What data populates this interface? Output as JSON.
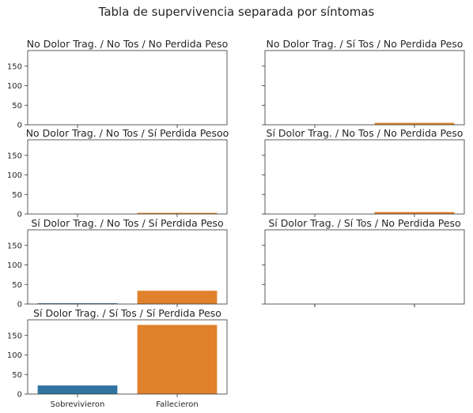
{
  "figure": {
    "title": "Tabla de supervivencia separada por síntomas"
  },
  "colors": {
    "sobrevivieron": "#3274a1",
    "fallecieron": "#e1812c",
    "axis": "#333333",
    "text": "#262626"
  },
  "chart_data": [
    {
      "type": "bar",
      "title": "No Dolor Trag. / No Tos / No Perdida Peso",
      "categories": [
        "Sobrevivieron",
        "Fallecieron"
      ],
      "values": [
        0,
        0
      ],
      "ylim": [
        0,
        190
      ],
      "yticks": [
        0,
        50,
        100,
        150
      ],
      "show_xticklabels": false,
      "show_yticklabels": true
    },
    {
      "type": "bar",
      "title": "No Dolor Trag. / Sí Tos / No Perdida Peso",
      "categories": [
        "Sobrevivieron",
        "Fallecieron"
      ],
      "values": [
        0,
        5
      ],
      "ylim": [
        0,
        190
      ],
      "yticks": [
        0,
        50,
        100,
        150
      ],
      "show_xticklabels": false,
      "show_yticklabels": false
    },
    {
      "type": "bar",
      "title": "No Dolor Trag. / No Tos / Sí Perdida Pesoo",
      "categories": [
        "Sobrevivieron",
        "Fallecieron"
      ],
      "values": [
        0,
        3
      ],
      "ylim": [
        0,
        190
      ],
      "yticks": [
        0,
        50,
        100,
        150
      ],
      "show_xticklabels": false,
      "show_yticklabels": true
    },
    {
      "type": "bar",
      "title": "Sí Dolor Trag. / No Tos / No Perdida Peso",
      "categories": [
        "Sobrevivieron",
        "Fallecieron"
      ],
      "values": [
        0,
        5
      ],
      "ylim": [
        0,
        190
      ],
      "yticks": [
        0,
        50,
        100,
        150
      ],
      "show_xticklabels": false,
      "show_yticklabels": false
    },
    {
      "type": "bar",
      "title": "Sí Dolor Trag. / No Tos / Sí Perdida Peso",
      "categories": [
        "Sobrevivieron",
        "Fallecieron"
      ],
      "values": [
        2,
        34
      ],
      "ylim": [
        0,
        190
      ],
      "yticks": [
        0,
        50,
        100,
        150
      ],
      "show_xticklabels": false,
      "show_yticklabels": true
    },
    {
      "type": "bar",
      "title": "Sí Dolor Trag. / Sí Tos / No Perdida Peso",
      "categories": [
        "Sobrevivieron",
        "Fallecieron"
      ],
      "values": [
        0,
        0
      ],
      "ylim": [
        0,
        190
      ],
      "yticks": [
        0,
        50,
        100,
        150
      ],
      "show_xticklabels": false,
      "show_yticklabels": false
    },
    {
      "type": "bar",
      "title": "Sí Dolor Trag. / Sí Tos / Sí Perdida Peso",
      "categories": [
        "Sobrevivieron",
        "Fallecieron"
      ],
      "values": [
        22,
        177
      ],
      "ylim": [
        0,
        190
      ],
      "yticks": [
        0,
        50,
        100,
        150
      ],
      "show_xticklabels": true,
      "show_yticklabels": true
    }
  ]
}
